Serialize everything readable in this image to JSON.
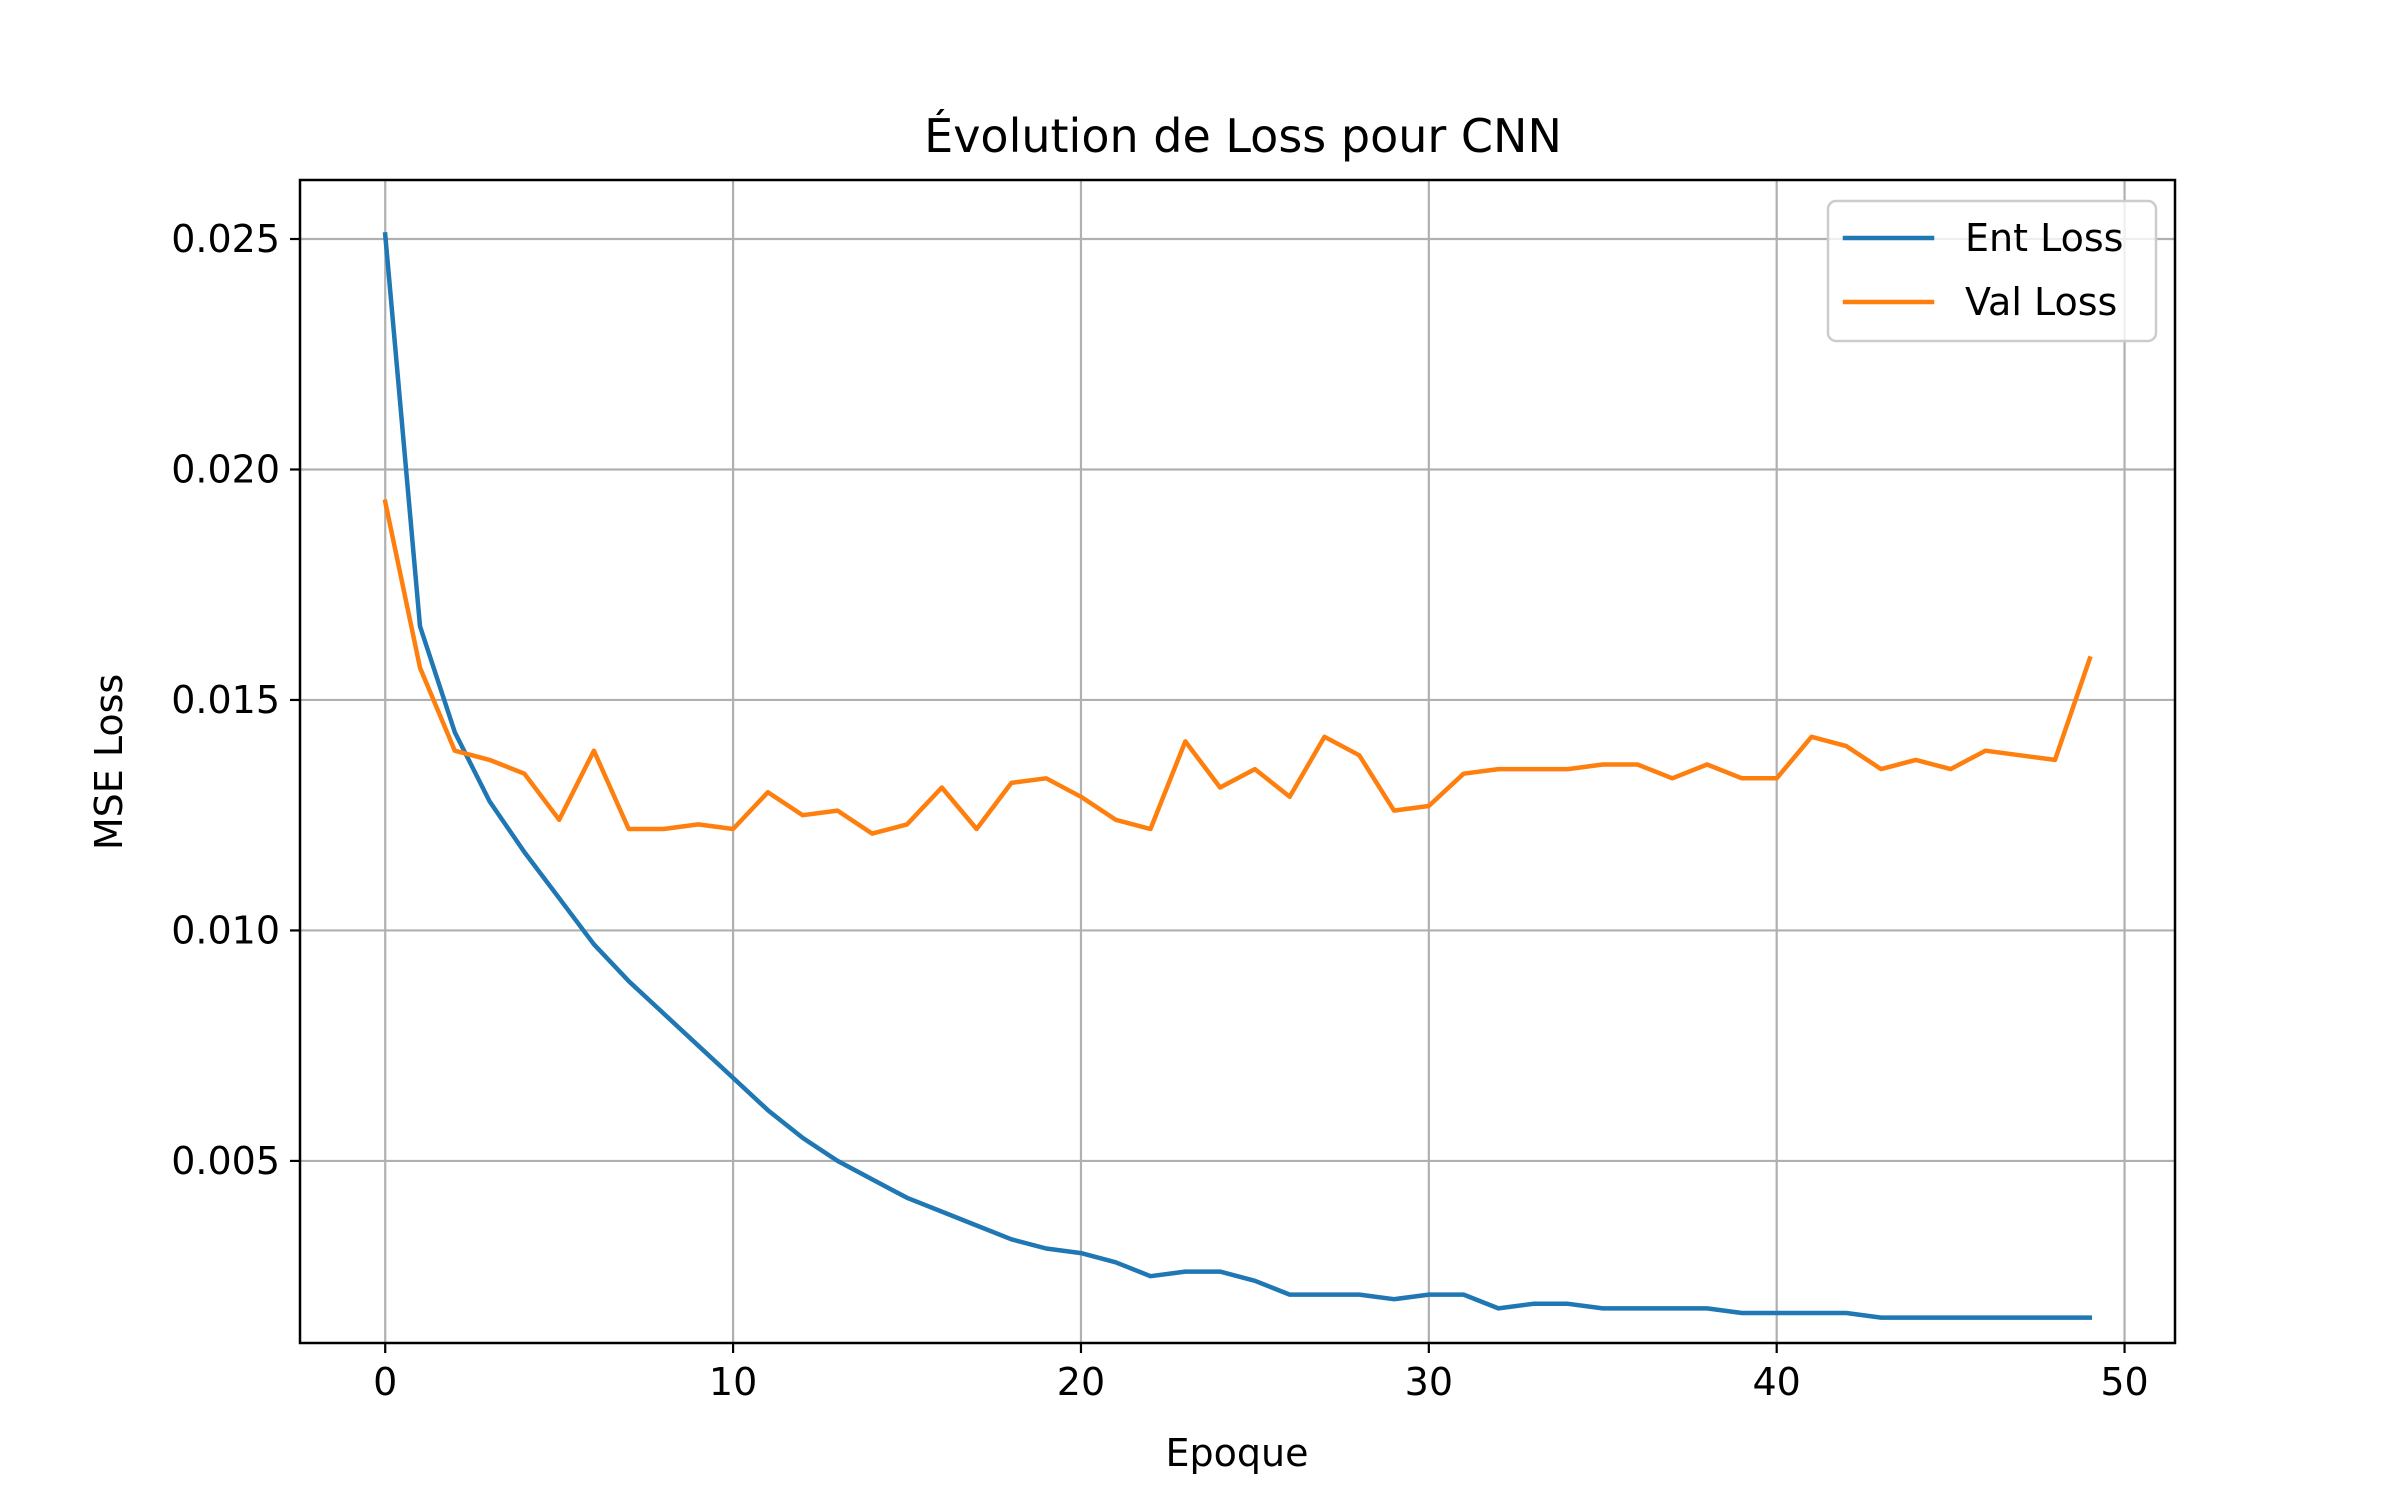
{
  "chart_data": {
    "type": "line",
    "title": "Évolution de Loss pour CNN",
    "xlabel": "Epoque",
    "ylabel": "MSE Loss",
    "xlim": [
      -2.45,
      51.45
    ],
    "ylim": [
      0.00105,
      0.02628
    ],
    "xticks": [
      0,
      10,
      20,
      30,
      40,
      50
    ],
    "xtick_labels": [
      "0",
      "10",
      "20",
      "30",
      "40",
      "50"
    ],
    "yticks": [
      0.005,
      0.01,
      0.015,
      0.02,
      0.025
    ],
    "ytick_labels": [
      "0.005",
      "0.010",
      "0.015",
      "0.020",
      "0.025"
    ],
    "grid": true,
    "legend_position": "top-right",
    "x": [
      0,
      1,
      2,
      3,
      4,
      5,
      6,
      7,
      8,
      9,
      10,
      11,
      12,
      13,
      14,
      15,
      16,
      17,
      18,
      19,
      20,
      21,
      22,
      23,
      24,
      25,
      26,
      27,
      28,
      29,
      30,
      31,
      32,
      33,
      34,
      35,
      36,
      37,
      38,
      39,
      40,
      41,
      42,
      43,
      44,
      45,
      46,
      47,
      48,
      49
    ],
    "series": [
      {
        "name": "Ent Loss",
        "color": "#1f77b4",
        "values": [
          0.0251,
          0.0166,
          0.0143,
          0.0128,
          0.0117,
          0.0107,
          0.0097,
          0.0089,
          0.0082,
          0.0075,
          0.0068,
          0.0061,
          0.0055,
          0.005,
          0.0046,
          0.0042,
          0.0039,
          0.0036,
          0.0033,
          0.0031,
          0.003,
          0.0028,
          0.0025,
          0.0026,
          0.0026,
          0.0024,
          0.0021,
          0.0021,
          0.0021,
          0.002,
          0.0021,
          0.0021,
          0.0018,
          0.0019,
          0.0019,
          0.0018,
          0.0018,
          0.0018,
          0.0018,
          0.0017,
          0.0017,
          0.0017,
          0.0017,
          0.0016,
          0.0016,
          0.0016,
          0.0016,
          0.0016,
          0.0016,
          0.0016
        ]
      },
      {
        "name": "Val Loss",
        "color": "#ff7f0e",
        "values": [
          0.0193,
          0.0157,
          0.0139,
          0.0137,
          0.0134,
          0.0124,
          0.0139,
          0.0122,
          0.0122,
          0.0123,
          0.0122,
          0.013,
          0.0125,
          0.0126,
          0.0121,
          0.0123,
          0.0131,
          0.0122,
          0.0132,
          0.0133,
          0.0129,
          0.0124,
          0.0122,
          0.0141,
          0.0131,
          0.0135,
          0.0129,
          0.0142,
          0.0138,
          0.0126,
          0.0127,
          0.0134,
          0.0135,
          0.0135,
          0.0135,
          0.0136,
          0.0136,
          0.0133,
          0.0136,
          0.0133,
          0.0133,
          0.0142,
          0.014,
          0.0135,
          0.0137,
          0.0135,
          0.0139,
          0.0138,
          0.0137,
          0.0159
        ]
      }
    ]
  }
}
